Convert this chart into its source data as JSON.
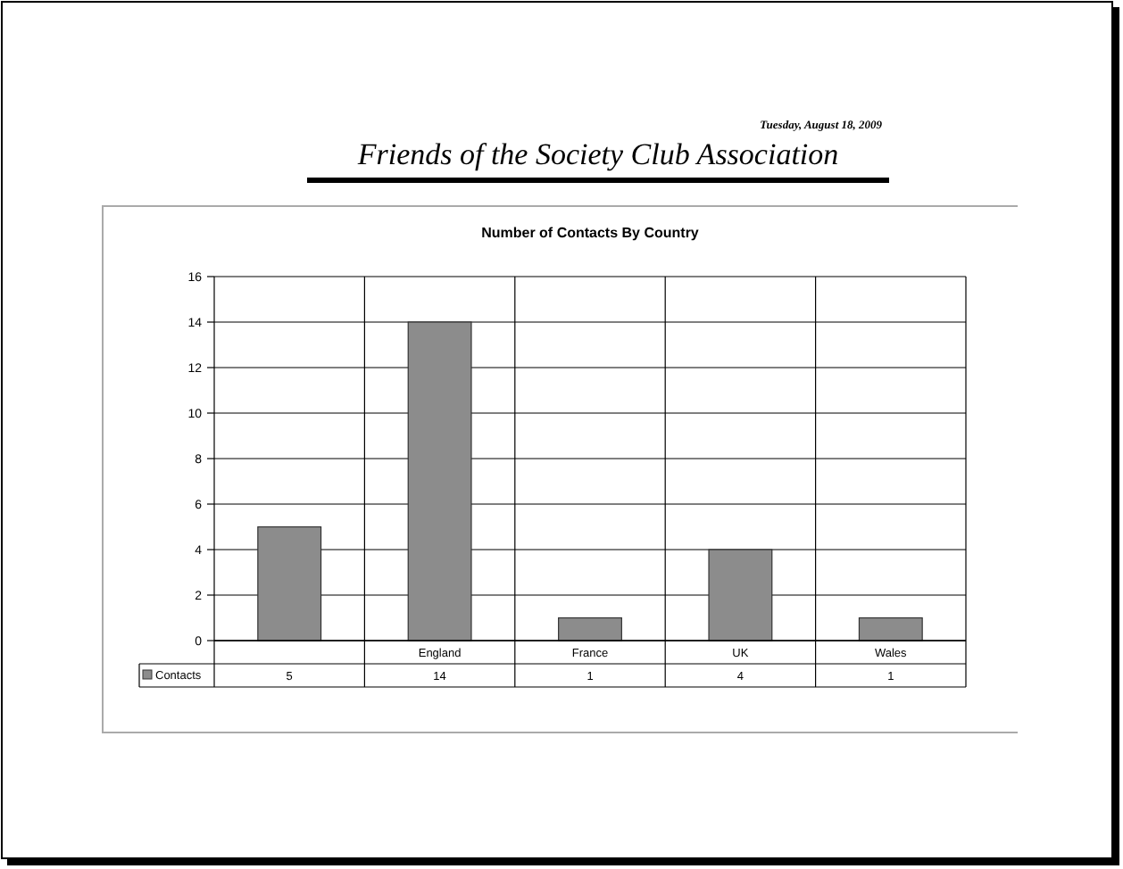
{
  "chart_data": {
    "type": "bar",
    "title": "Friends of the Society Club Association",
    "subtitle": "Number of Contacts By Country",
    "annotations": [
      "Tuesday, August 18, 2009"
    ],
    "categories": [
      null,
      "England",
      "France",
      "UK",
      "Wales"
    ],
    "series": [
      {
        "name": "Contacts",
        "color": "#8c8c8c",
        "values": [
          5,
          14,
          1,
          4,
          1
        ]
      }
    ],
    "ylim": [
      0,
      16
    ],
    "yticks": [
      0,
      2,
      4,
      6,
      8,
      10,
      12,
      14,
      16
    ],
    "grid": "y",
    "legend": "bottom",
    "data_labels": true
  }
}
